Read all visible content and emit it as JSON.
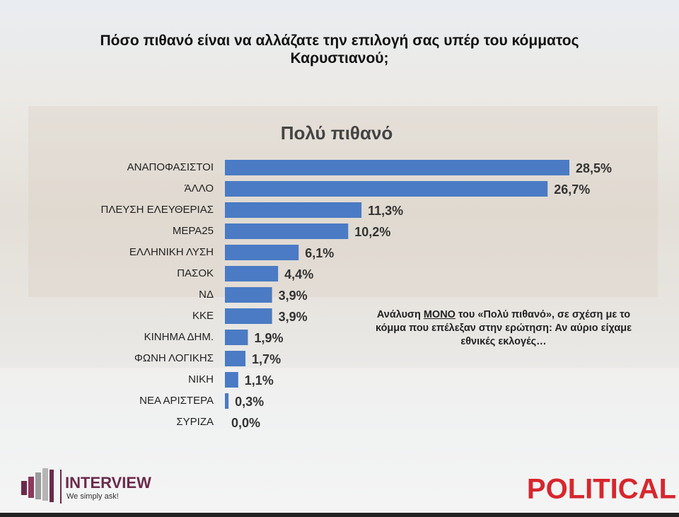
{
  "chart_data": {
    "type": "bar",
    "orientation": "horizontal",
    "title": "Πόσο πιθανό είναι να αλλάζατε την επιλογή σας υπέρ του κόμματος Καρυστιανού;",
    "subtitle": "Πολύ πιθανό",
    "categories": [
      "ΑΝΑΠΟΦΑΣΙΣΤΟΙ",
      "ΆΛΛΟ",
      "ΠΛΕΥΣΗ ΕΛΕΥΘΕΡΙΑΣ",
      "ΜΕΡΑ25",
      "ΕΛΛΗΝΙΚΗ ΛΥΣΗ",
      "ΠΑΣΟΚ",
      "ΝΔ",
      "ΚΚΕ",
      "ΚΙΝΗΜΑ ΔΗΜ.",
      "ΦΩΝΗ ΛΟΓΙΚΗΣ",
      "ΝΙΚΗ",
      "ΝΕΑ ΑΡΙΣΤΕΡΑ",
      "ΣΥΡΙΖΑ"
    ],
    "values": [
      28.5,
      26.7,
      11.3,
      10.2,
      6.1,
      4.4,
      3.9,
      3.9,
      1.9,
      1.7,
      1.1,
      0.3,
      0.0
    ],
    "value_labels": [
      "28,5%",
      "26,7%",
      "11,3%",
      "10,2%",
      "6,1%",
      "4,4%",
      "3,9%",
      "3,9%",
      "1,9%",
      "1,7%",
      "1,1%",
      "0,3%",
      "0,0%"
    ],
    "color": "#4a7bc4",
    "annotation": [
      "Ανάλυση ",
      "ΜΟΝΟ",
      " του «Πολύ πιθανό», σε σχέση με το κόμμα που επέλεξαν στην ερώτηση: Αν αύριο είχαμε εθνικές εκλογές…"
    ]
  },
  "footer": {
    "brand": "INTERVIEW",
    "slogan": "We simply ask!",
    "publisher": "POLITICAL"
  }
}
